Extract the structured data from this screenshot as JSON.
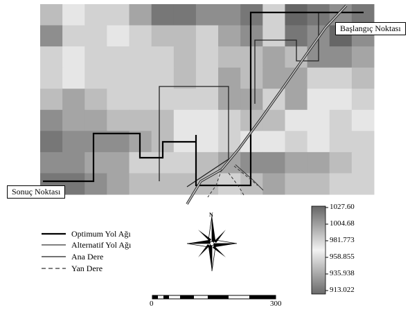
{
  "map": {
    "grid_values": [
      [
        3,
        1,
        2,
        2,
        4,
        6,
        6,
        5,
        5,
        6,
        2,
        7,
        6,
        5,
        6
      ],
      [
        5,
        2,
        2,
        1,
        2,
        3,
        3,
        2,
        4,
        5,
        2,
        6,
        5,
        7,
        5
      ],
      [
        2,
        1,
        2,
        2,
        2,
        2,
        3,
        2,
        3,
        3,
        4,
        3,
        5,
        5,
        4
      ],
      [
        2,
        1,
        2,
        2,
        2,
        2,
        3,
        2,
        4,
        3,
        4,
        4,
        2,
        2,
        3
      ],
      [
        3,
        4,
        3,
        2,
        2,
        2,
        2,
        2,
        4,
        4,
        2,
        4,
        1,
        1,
        2
      ],
      [
        5,
        4,
        4,
        3,
        3,
        3,
        1,
        1,
        2,
        3,
        3,
        1,
        1,
        2,
        1
      ],
      [
        6,
        5,
        5,
        5,
        4,
        3,
        1,
        1,
        2,
        1,
        1,
        2,
        1,
        2,
        2
      ],
      [
        5,
        5,
        4,
        4,
        2,
        2,
        2,
        3,
        4,
        5,
        5,
        4,
        4,
        3,
        2
      ],
      [
        6,
        6,
        5,
        4,
        3,
        3,
        3,
        3,
        2,
        3,
        4,
        3,
        3,
        2,
        2
      ]
    ],
    "start_label": "Başlangıç Noktası",
    "end_label": "Sonuç Noktası"
  },
  "legend": {
    "items": [
      {
        "label": "Optimum Yol Ağı",
        "style": "thick"
      },
      {
        "label": "Alternatif Yol Ağı",
        "style": "thin"
      },
      {
        "label": "Ana Dere",
        "style": "river"
      },
      {
        "label": "Yan Dere",
        "style": "dashed"
      }
    ]
  },
  "compass": {
    "north_label": "N"
  },
  "scalebar": {
    "start_label": "0",
    "end_label": "300"
  },
  "colorbar": {
    "labels": [
      "1027.60",
      "1004.68",
      "981.773",
      "958.855",
      "935.938",
      "913.022"
    ],
    "top_color": "#666666",
    "mid_color": "#f2f2f2",
    "bottom_color": "#6a6a6a"
  }
}
